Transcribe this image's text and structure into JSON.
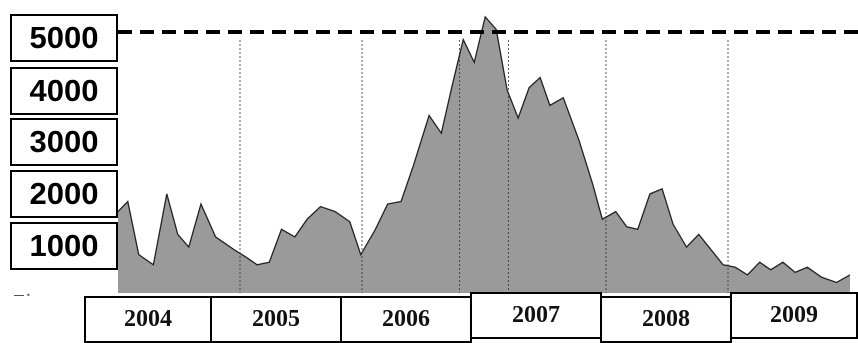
{
  "chart_data": {
    "type": "area",
    "title": "",
    "xlabel": "",
    "ylabel": "",
    "ylim": [
      0,
      5600
    ],
    "xlim": [
      2004.0,
      2010.0
    ],
    "y_ticks": [
      "5000",
      "4000",
      "3000",
      "2000",
      "1000"
    ],
    "x_categories": [
      "2004",
      "2005",
      "2006",
      "2007",
      "2008",
      "2009"
    ],
    "reference_line": {
      "y": 5000,
      "style": "dashed"
    },
    "fill_color": "#9a9a9a",
    "line_color": "#222222",
    "grid": false,
    "legend": "none",
    "series": [
      {
        "x": [
          2004.0,
          2004.08,
          2004.17,
          2004.29,
          2004.4,
          2004.49,
          2004.58,
          2004.68,
          2004.8,
          2004.95,
          2005.05,
          2005.14,
          2005.24,
          2005.34,
          2005.45,
          2005.55,
          2005.66,
          2005.78,
          2005.9,
          2005.99,
          2006.11,
          2006.21,
          2006.32,
          2006.42,
          2006.55,
          2006.65,
          2006.74,
          2006.83,
          2006.92,
          2007.01,
          2007.1,
          2007.19,
          2007.28,
          2007.37,
          2007.46,
          2007.54,
          2007.65,
          2007.78,
          2007.89,
          2007.97,
          2008.08,
          2008.17,
          2008.26,
          2008.36,
          2008.46,
          2008.55,
          2008.66,
          2008.76,
          2008.86,
          2008.96,
          2009.06,
          2009.16,
          2009.26,
          2009.35,
          2009.45,
          2009.55,
          2009.65,
          2009.77,
          2009.89,
          2010.0
        ],
        "y": [
          1450,
          1650,
          600,
          400,
          1800,
          1000,
          750,
          1600,
          950,
          700,
          550,
          400,
          450,
          1100,
          950,
          1300,
          1550,
          1450,
          1250,
          600,
          1100,
          1600,
          1650,
          2350,
          3350,
          3000,
          3950,
          4850,
          4400,
          5300,
          5050,
          3850,
          3300,
          3900,
          4100,
          3550,
          3700,
          2850,
          2000,
          1300,
          1450,
          1150,
          1100,
          1800,
          1900,
          1200,
          750,
          1000,
          700,
          400,
          350,
          200,
          450,
          300,
          450,
          250,
          350,
          150,
          50,
          200
        ]
      }
    ]
  }
}
